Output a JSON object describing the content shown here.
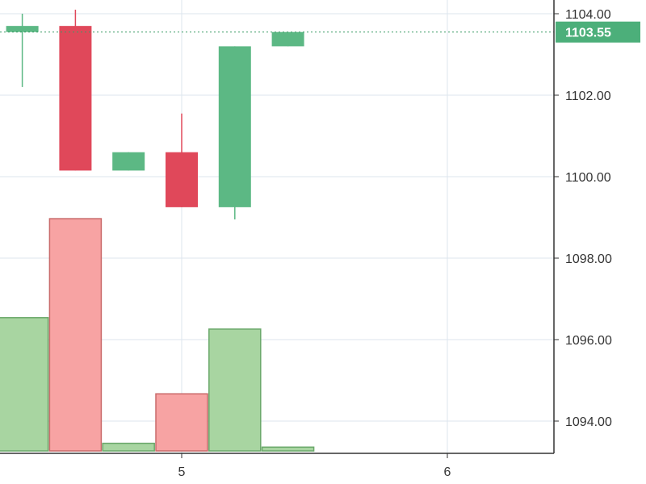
{
  "chart_data": {
    "type": "candlestick",
    "y_axis": {
      "min": 1093.0,
      "max": 1104.4,
      "ticks": [
        1104.0,
        1102.0,
        1100.0,
        1098.0,
        1096.0,
        1094.0
      ],
      "tick_labels": [
        "1104.00",
        "1102.00",
        "1100.00",
        "1098.00",
        "1096.00",
        "1094.00"
      ],
      "position": "right"
    },
    "x_axis": {
      "min": 4.35,
      "max": 6.4,
      "ticks": [
        5,
        6
      ],
      "tick_labels": [
        "5",
        "6"
      ]
    },
    "last_price": {
      "value": 1103.55,
      "label": "1103.55"
    },
    "candles": [
      {
        "x": 4.4,
        "open": 1103.55,
        "close": 1103.7,
        "high": 1104.0,
        "low": 1102.2,
        "direction": "up"
      },
      {
        "x": 4.6,
        "open": 1103.7,
        "close": 1100.15,
        "high": 1104.1,
        "low": 1100.15,
        "direction": "down"
      },
      {
        "x": 4.8,
        "open": 1100.15,
        "close": 1100.6,
        "high": 1100.6,
        "low": 1100.15,
        "direction": "up"
      },
      {
        "x": 5.0,
        "open": 1100.6,
        "close": 1099.25,
        "high": 1101.55,
        "low": 1099.25,
        "direction": "down"
      },
      {
        "x": 5.2,
        "open": 1099.25,
        "close": 1103.2,
        "high": 1103.2,
        "low": 1098.95,
        "direction": "up"
      },
      {
        "x": 5.4,
        "open": 1103.2,
        "close": 1103.55,
        "high": 1103.55,
        "low": 1103.2,
        "direction": "up"
      }
    ],
    "volume_bars": [
      {
        "x": 4.4,
        "level": 0.35,
        "direction": "up"
      },
      {
        "x": 4.6,
        "level": 0.61,
        "direction": "down"
      },
      {
        "x": 4.8,
        "level": 0.02,
        "direction": "up"
      },
      {
        "x": 5.0,
        "level": 0.15,
        "direction": "down"
      },
      {
        "x": 5.2,
        "level": 0.32,
        "direction": "up"
      },
      {
        "x": 5.4,
        "level": 0.01,
        "direction": "up"
      }
    ],
    "grid": true,
    "colors": {
      "up": "#5cb884",
      "down": "#e0485a",
      "volume_up_fill": "#a8d5a1",
      "volume_up_stroke": "#6aa86a",
      "volume_down_fill": "#f7a3a3",
      "volume_down_stroke": "#c96a6a",
      "grid": "#dce6ee",
      "axis": "#333333",
      "last_price_bg": "#4caf7a",
      "last_price_line": "#3a9c66"
    }
  }
}
